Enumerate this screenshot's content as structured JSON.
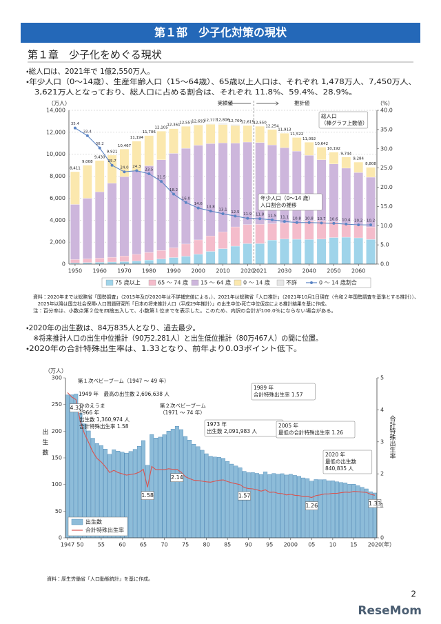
{
  "header": {
    "title": "第１部　少子化対策の現状"
  },
  "chapter": {
    "title": "第１章　少子化をめぐる現状"
  },
  "bullets": [
    "・総人口は、2021年で 1億2,550万人。",
    "・年少人口（0～14歳）、生産年齢人口（15～64歳）、65歳以上人口は、それぞれ 1,478万人、7,450万人、",
    "　3,621万人となっており、総人口に占める割合は、それぞれ 11.8%、59.4%、28.9%。"
  ],
  "notes": [
    "資料：2020年までは総務省「国勢調査」（2015年及び2020年は不詳補完値による。）、2021年は総務省「人口推計」（2021年10月1日現在（令和２年国勢調査を基準とする推計））、",
    "　2025年以降は国立社会保障・人口問題研究所「日本の将来推計人口（平成29年推計）」の出生中位・死亡中位仮定による推計結果を基に作成。",
    "注：百分率は、小数点第２位を四捨五入して、小数第１位までを表示した。このため、内訳の合計が100.0％にならない場合がある。"
  ],
  "bullets2": [
    "・2020年の出生数は、84万835人となり、過去最少。",
    "　※将来推計人口の出生中位推計（90万2,281人）と出生低位推計（80万467人）の間に位置。",
    "・2020年の合計特殊出生率は、1.33となり、前年より0.03ポイント低下。"
  ],
  "source": "資料：厚生労働省「人口動態統計」を基に作成。",
  "page_number": "2",
  "logo": "ReseMom",
  "chart_data": [
    {
      "type": "stacked_bar",
      "y_label": "（万人）",
      "y2_label": "（%）",
      "categories": [
        "1950",
        null,
        "1960",
        null,
        "1970",
        null,
        "1980",
        null,
        "1990",
        null,
        "2000",
        null,
        "2010",
        null,
        "2020",
        "2021",
        null,
        "2030",
        null,
        "2040",
        null,
        "2050",
        null,
        "2060",
        null
      ],
      "series": [
        {
          "name": "75 歳以上",
          "color": "#9fd4ea",
          "values": [
            107,
            139,
            163,
            189,
            224,
            284,
            366,
            471,
            597,
            717,
            900,
            1160,
            1407,
            1632,
            1860,
            1867,
            2180,
            2288,
            2260,
            2239,
            2277,
            2417,
            2446,
            2387,
            2248
          ]
        },
        {
          "name": "65 ～ 74 歳",
          "color": "#f4bccb",
          "values": [
            309,
            338,
            376,
            434,
            516,
            602,
            699,
            776,
            892,
            1109,
            1301,
            1407,
            1517,
            1755,
            1742,
            1754,
            1497,
            1428,
            1522,
            1681,
            1643,
            1424,
            1258,
            1154,
            1133
          ]
        },
        {
          "name": "15 ～ 64 歳",
          "color": "#cdb6dc",
          "values": [
            5017,
            5517,
            6047,
            6744,
            7212,
            7581,
            7883,
            8251,
            8590,
            8716,
            8622,
            8409,
            8103,
            7629,
            7509,
            7450,
            7170,
            6875,
            6494,
            5978,
            5584,
            5275,
            5028,
            4793,
            4529
          ]
        },
        {
          "name": "0 ～ 14 歳",
          "color": "#fbe8ae",
          "values": [
            2979,
            3012,
            2843,
            2553,
            2515,
            2722,
            2751,
            2603,
            2249,
            2001,
            1847,
            1752,
            1680,
            1595,
            1503,
            1478,
            1407,
            1321,
            1246,
            1194,
            1138,
            1077,
            1012,
            951,
            898
          ]
        },
        {
          "name": "不詳",
          "color": "#e6e6e6",
          "values": [
            null,
            null,
            null,
            null,
            null,
            null,
            null,
            null,
            null,
            null,
            23,
            48,
            98,
            98,
            null,
            null,
            null,
            null,
            null,
            null,
            null,
            null,
            null,
            null,
            null
          ]
        },
        {
          "name": "0 ～ 14 歳割合",
          "color": "#5b84c4",
          "type": "line",
          "axis": "y2",
          "values": [
            35.4,
            33.4,
            30.2,
            25.7,
            24.0,
            24.3,
            23.5,
            21.5,
            18.2,
            16.0,
            14.6,
            13.8,
            13.1,
            12.5,
            11.9,
            11.8,
            11.5,
            11.1,
            10.8,
            10.8,
            10.7,
            10.6,
            10.4,
            10.2,
            10.2
          ],
          "value_labels": [
            "35.4",
            "33.4",
            "30.2",
            "25.7",
            "24.0",
            "24.3",
            "23.5",
            "21.5",
            "18.2",
            "16.0",
            "14.6",
            "13.8",
            "13.1",
            "12.5",
            "11.9",
            "11.8",
            "11.5",
            "11.1",
            "10.8",
            "10.8",
            "10.7",
            "10.6",
            "10.4",
            "10.2",
            "10.2"
          ]
        }
      ],
      "totals": {
        "values": [
          8411,
          9008,
          9430,
          9921,
          10467,
          11194,
          11706,
          12105,
          12361,
          12557,
          12693,
          12777,
          12806,
          12709,
          12615,
          12550,
          12254,
          11913,
          11522,
          11092,
          10642,
          10192,
          9744,
          9284,
          8808
        ],
        "value_labels": [
          "8,411",
          "9,008",
          "9,430",
          "9,921",
          "10,467",
          "11,194",
          "11,706",
          "12,105",
          "12,361",
          "12,557",
          "12,693",
          "12,777",
          "12,806",
          "12,709",
          "12,615",
          "12,550",
          "12,254",
          "11,913",
          "11,522",
          "11,092",
          "10,642",
          "10,192",
          "9,744",
          "9,284",
          "8,808"
        ]
      },
      "ylim": [
        0,
        14000
      ],
      "yticks": [
        0,
        {
          "value": 2000,
          "label": "2,000"
        },
        {
          "value": 4000,
          "label": "4,000"
        },
        {
          "value": 6000,
          "label": "6,000"
        },
        {
          "value": 8000,
          "label": "8,000"
        },
        {
          "value": 10000,
          "label": "10,000"
        },
        {
          "value": 12000,
          "label": "12,000"
        },
        {
          "value": 14000,
          "label": "14,000"
        }
      ],
      "y2lim": [
        0,
        40
      ],
      "y2ticks": [
        {
          "value": 0,
          "label": "0.0"
        },
        {
          "value": 5,
          "label": "5.0"
        },
        {
          "value": 10,
          "label": "10.0"
        },
        {
          "value": 15,
          "label": "15.0"
        },
        {
          "value": 20,
          "label": "20.0"
        },
        {
          "value": 25,
          "label": "25.0"
        },
        {
          "value": 30,
          "label": "30.0"
        },
        {
          "value": 35,
          "label": "35.0"
        },
        {
          "value": 40,
          "label": "40.0"
        }
      ],
      "grid": true,
      "markers": true,
      "legend": "bottom",
      "annotations": [
        [
          "実績値"
        ],
        [
          "推計値"
        ],
        [
          "総人口",
          "（棒グラフ上数値）"
        ],
        [
          "年少人口（0～14 歳）",
          "人口割合の推移"
        ]
      ]
    },
    {
      "type": "bar",
      "y_label": "（万人）",
      "y_title": "出生数",
      "y2_label": "合計特殊出生率",
      "x_label": "（年）",
      "categories": [
        "1947",
        null,
        null,
        "50",
        null,
        null,
        null,
        null,
        "55",
        null,
        null,
        null,
        null,
        "60",
        null,
        null,
        null,
        null,
        "65",
        null,
        null,
        null,
        null,
        "70",
        null,
        null,
        null,
        null,
        "75",
        null,
        null,
        null,
        null,
        "80",
        null,
        null,
        null,
        null,
        "85",
        null,
        null,
        null,
        null,
        "90",
        null,
        null,
        null,
        null,
        "95",
        null,
        null,
        null,
        null,
        "2000",
        null,
        null,
        null,
        null,
        "05",
        null,
        null,
        null,
        null,
        "10",
        null,
        null,
        null,
        null,
        "15",
        null,
        null,
        null,
        null,
        "2020"
      ],
      "series": [
        {
          "name": "出生数",
          "color": "#8dbcd9",
          "values": [
            267.9,
            268.2,
            269.7,
            233.8,
            213.8,
            200.5,
            186.8,
            176.9,
            173.1,
            166.5,
            156.7,
            165.3,
            162.6,
            160.6,
            158.9,
            161.9,
            166.0,
            171.7,
            182.4,
            136.1,
            193.6,
            187.2,
            188.9,
            193.4,
            200.1,
            203.9,
            209.2,
            203.0,
            190.1,
            183.3,
            175.5,
            170.9,
            164.3,
            157.7,
            152.9,
            151.5,
            150.9,
            149.0,
            143.2,
            138.3,
            134.7,
            131.4,
            124.7,
            122.2,
            122.3,
            120.9,
            118.8,
            123.8,
            118.7,
            120.7,
            119.2,
            120.3,
            117.8,
            119.1,
            117.1,
            115.4,
            112.4,
            111.1,
            106.3,
            109.3,
            109.0,
            109.1,
            107.0,
            107.1,
            105.1,
            103.7,
            103.0,
            100.4,
            100.6,
            97.7,
            94.6,
            91.8,
            86.5,
            84.1
          ]
        },
        {
          "name": "合計特殊出生率",
          "color": "#d9534f",
          "type": "line",
          "axis": "y2",
          "values": [
            4.54,
            4.4,
            4.32,
            3.65,
            3.26,
            2.98,
            2.69,
            2.48,
            2.37,
            2.22,
            2.04,
            2.11,
            2.04,
            2.0,
            1.96,
            1.98,
            2.0,
            2.05,
            2.14,
            1.58,
            2.23,
            2.13,
            2.13,
            2.13,
            2.16,
            2.14,
            2.14,
            2.05,
            1.91,
            1.85,
            1.8,
            1.79,
            1.77,
            1.75,
            1.74,
            1.77,
            1.8,
            1.81,
            1.76,
            1.72,
            1.69,
            1.66,
            1.57,
            1.54,
            1.53,
            1.5,
            1.46,
            1.5,
            1.42,
            1.43,
            1.39,
            1.38,
            1.34,
            1.36,
            1.33,
            1.32,
            1.29,
            1.29,
            1.26,
            1.32,
            1.34,
            1.37,
            1.37,
            1.39,
            1.39,
            1.41,
            1.43,
            1.42,
            1.45,
            1.44,
            1.43,
            1.42,
            1.36,
            1.33
          ],
          "value_labels": [
            null,
            null,
            "4.32",
            null,
            null,
            null,
            null,
            null,
            null,
            null,
            null,
            null,
            null,
            null,
            null,
            null,
            null,
            null,
            null,
            "1.58",
            null,
            null,
            null,
            null,
            null,
            null,
            "2.14",
            null,
            null,
            null,
            null,
            null,
            null,
            null,
            null,
            null,
            null,
            null,
            null,
            null,
            null,
            null,
            "1.57",
            null,
            null,
            null,
            null,
            null,
            null,
            null,
            null,
            null,
            null,
            null,
            null,
            null,
            null,
            null,
            "1.26",
            null,
            null,
            null,
            null,
            null,
            null,
            null,
            null,
            null,
            null,
            null,
            null,
            null,
            null,
            "1.33"
          ]
        }
      ],
      "ylim": [
        0,
        300
      ],
      "yticks": [
        0,
        50,
        100,
        150,
        200,
        250,
        300
      ],
      "y2lim": [
        0,
        5
      ],
      "y2ticks": [
        0,
        1,
        2,
        3,
        4,
        5
      ],
      "grid": false,
      "markers": false,
      "legend": "lower left",
      "annotations": [
        [
          "第１次ベビーブーム（1947 ～ 49 年）"
        ],
        [
          "1949 年　最高の出生数 2,696,638 人"
        ],
        [
          "ひのえうま",
          "1966 年",
          "出生数 1,360,974 人",
          "合計特殊出生率 1.58"
        ],
        [
          "第２次ベビーブーム",
          "（1971 ～ 74 年）"
        ],
        [
          "1973 年",
          "出生数 2,091,983 人"
        ],
        [
          "1989 年",
          "合計特殊出生率 1.57"
        ],
        [
          "2005 年",
          "最低の合計特殊出生率 1.26"
        ],
        [
          "2020 年",
          "最低の出生数",
          "840,835 人"
        ]
      ]
    }
  ]
}
